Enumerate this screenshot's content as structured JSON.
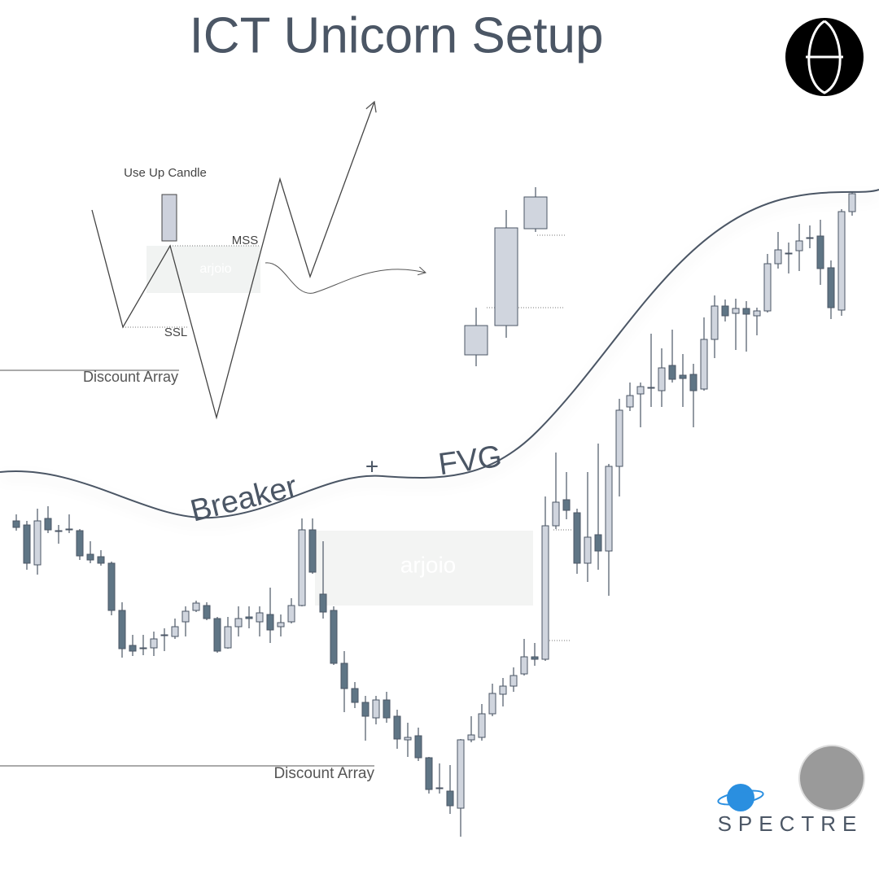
{
  "header": {
    "title": "ICT Unicorn Setup"
  },
  "schematic": {
    "candle_label": "Use Up Candle",
    "mss": "MSS",
    "ssl": "SSL",
    "watermark": "arjoio",
    "discount": "Discount Array"
  },
  "chart": {
    "watermark": "arjoio",
    "discount": "Discount Array",
    "breaker": "Breaker",
    "plus": "+",
    "fvg": "FVG"
  },
  "brand": {
    "name": "SPECTRE"
  }
}
